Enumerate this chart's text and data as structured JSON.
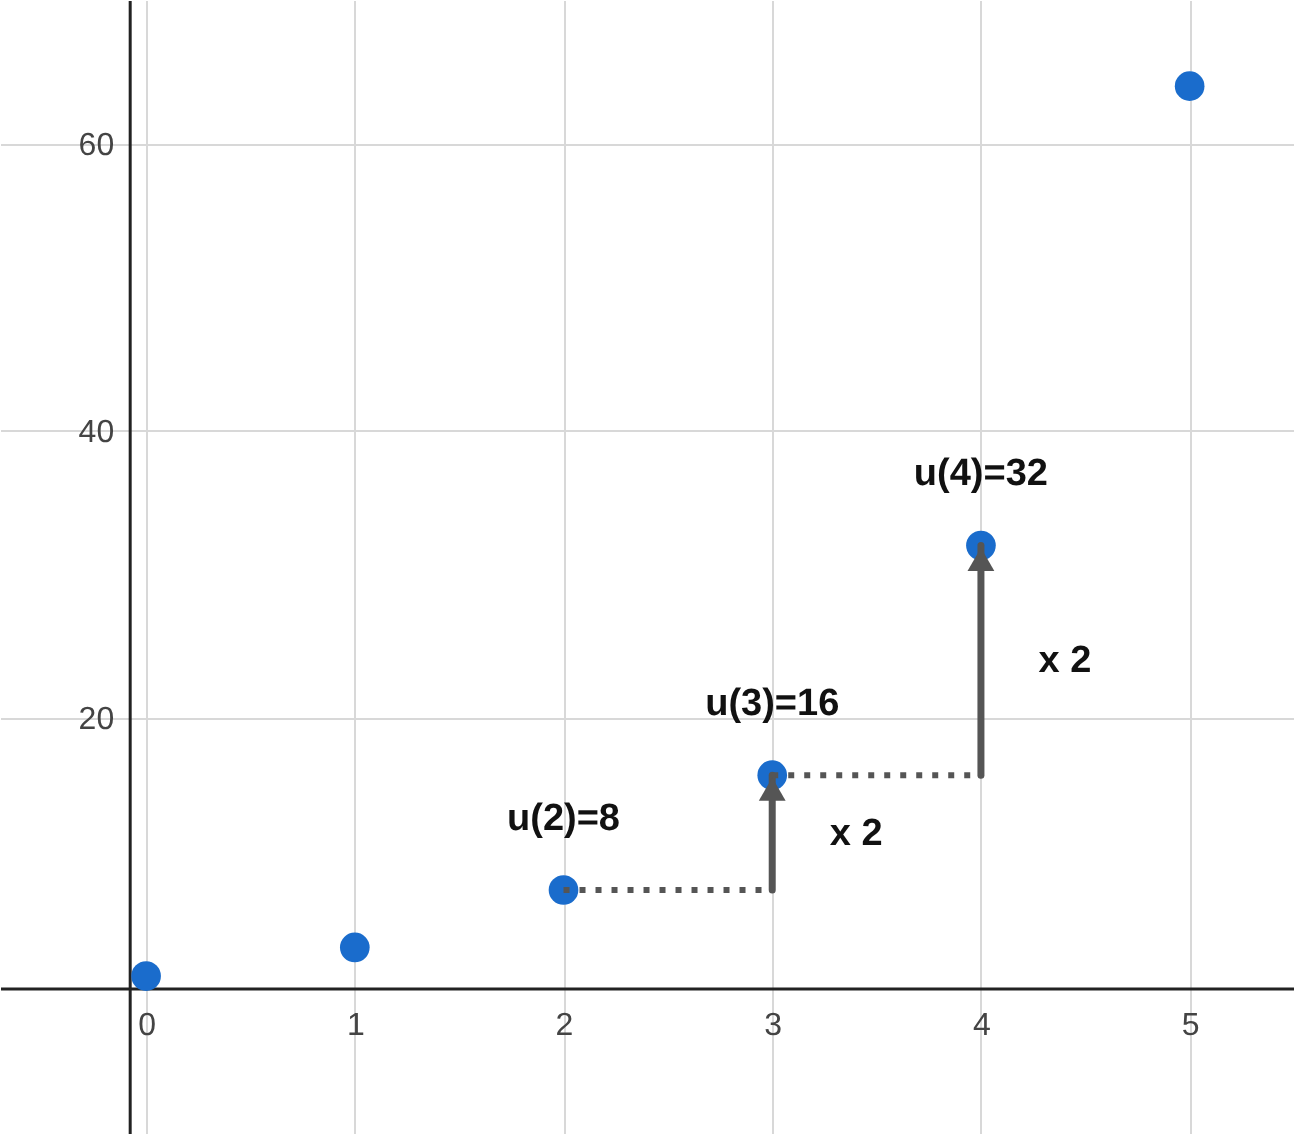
{
  "chart_data": {
    "type": "scatter",
    "x": [
      0,
      1,
      2,
      3,
      4,
      5
    ],
    "series": [
      {
        "color": "#1a6ccc",
        "values": [
          2,
          4,
          8,
          16,
          32,
          64
        ],
        "marker": "circle"
      },
      {
        "type": "line",
        "color": "#555555",
        "x": [
          2,
          3
        ],
        "values": [
          8,
          8
        ],
        "line_style": "dotted"
      },
      {
        "type": "line",
        "color": "#555555",
        "x": [
          3,
          4
        ],
        "values": [
          16,
          16
        ],
        "line_style": "dotted"
      }
    ],
    "xlim": [
      -0.7,
      5.5
    ],
    "ylim": [
      -9,
      70
    ],
    "xticks": [
      0,
      1,
      2,
      3,
      4,
      5
    ],
    "yticks": [
      20,
      40,
      60
    ],
    "grid": true,
    "annotations": [
      {
        "text": "u(2)=8",
        "x": 2,
        "y": 8
      },
      {
        "text": "u(3)=16",
        "x": 3,
        "y": 16
      },
      {
        "text": "u(4)=32",
        "x": 4,
        "y": 32
      },
      "x 2",
      "x 2"
    ]
  }
}
